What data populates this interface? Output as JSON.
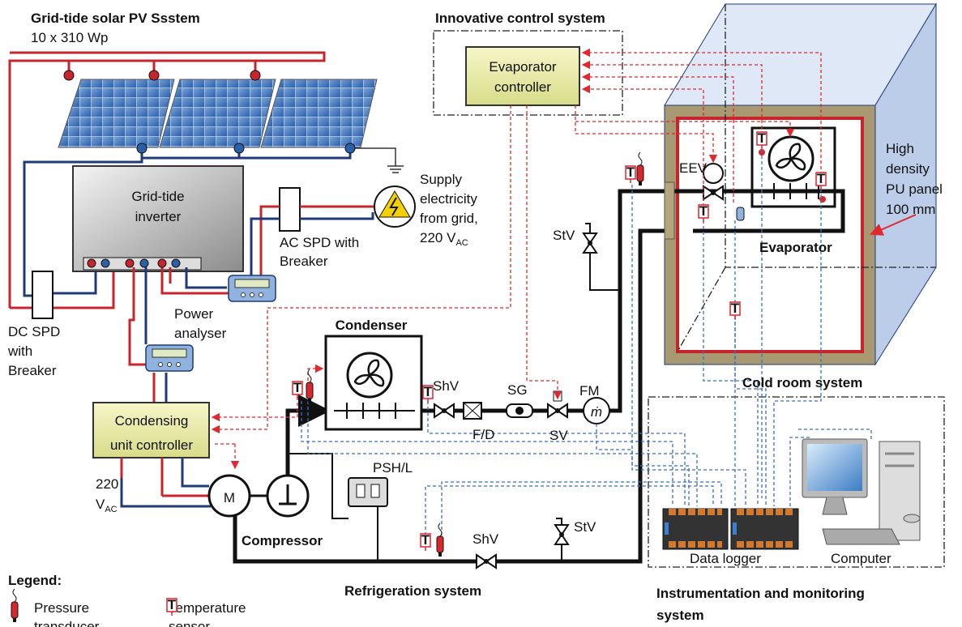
{
  "pv_system": {
    "title": "Grid-tide solar PV Ssstem",
    "spec": "10 x 310 Wp"
  },
  "inverter": {
    "label": [
      "Grid-tide",
      "inverter"
    ]
  },
  "grid_supply": {
    "lines": [
      "Supply",
      "electricity",
      "from grid,"
    ],
    "voltage": "220 V",
    "voltage_sub": "AC"
  },
  "ac_spd": {
    "label": [
      "AC SPD with",
      "Breaker"
    ]
  },
  "dc_spd": {
    "label": [
      "DC SPD",
      "with",
      "Breaker"
    ]
  },
  "power_analyser": {
    "label": [
      "Power",
      "analyser"
    ]
  },
  "control_system": {
    "title": "Innovative control system",
    "evaporator_controller": [
      "Evaporator",
      "controller"
    ]
  },
  "condensing_controller": {
    "label": [
      "Condensing",
      "unit controller"
    ]
  },
  "compressor_supply": {
    "voltage": "220",
    "unit": "V",
    "unit_sub": "AC"
  },
  "refrigeration": {
    "title": "Refrigeration system",
    "condenser": "Condenser",
    "compressor": "Compressor",
    "motor": "M",
    "psh": "PSH/L",
    "shv": "ShV",
    "fd": "F/D",
    "sg": "SG",
    "sv": "SV",
    "fm": "FM",
    "fm_symbol": "ṁ",
    "stv": "StV",
    "stv_bottom": "StV",
    "shv_bottom": "ShV"
  },
  "cold_room": {
    "title": "Cold room system",
    "eev": "EEV",
    "evaporator": "Evaporator",
    "panel": [
      "High",
      "density",
      "PU panel",
      "100 mm"
    ]
  },
  "instrumentation": {
    "title": [
      "Instrumentation and monitoring",
      "system"
    ],
    "data_logger": "Data logger",
    "computer": "Computer"
  },
  "legend": {
    "title": "Legend:",
    "pressure": [
      "Pressure",
      "transducer"
    ],
    "temperature": [
      "Temperature",
      "sensor"
    ],
    "sensor_symbol": "T"
  }
}
